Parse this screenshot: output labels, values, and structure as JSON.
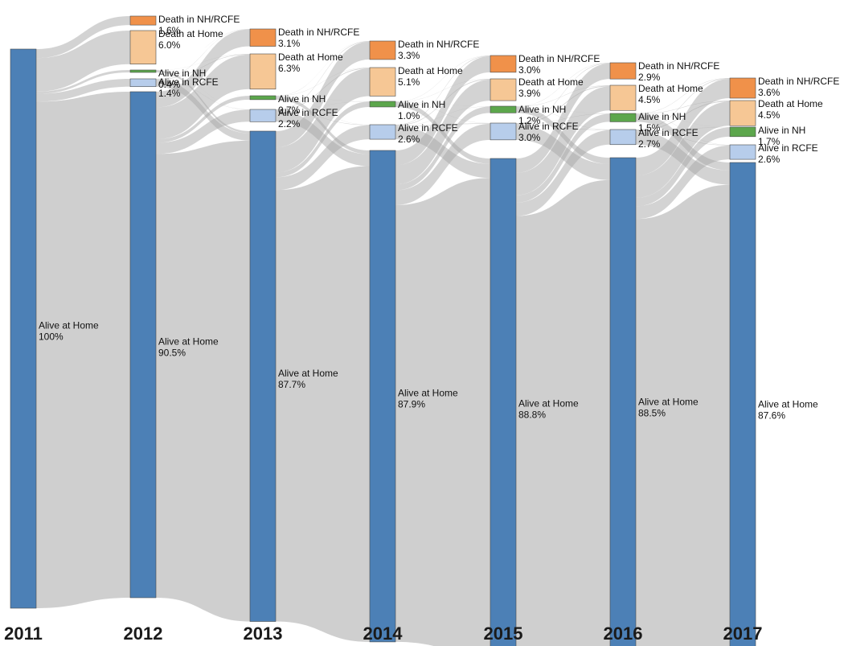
{
  "chart_data": {
    "type": "sankey",
    "title": "",
    "years": [
      "2011",
      "2012",
      "2013",
      "2014",
      "2015",
      "2016",
      "2017"
    ],
    "categories": [
      {
        "key": "death_nh",
        "label": "Death in NH/RCFE",
        "color": "#f0914a"
      },
      {
        "key": "death_home",
        "label": "Death at Home",
        "color": "#f6c795"
      },
      {
        "key": "alive_nh",
        "label": "Alive in NH",
        "color": "#5ca64c"
      },
      {
        "key": "alive_rcfe",
        "label": "Alive in RCFE",
        "color": "#b7cdeb"
      },
      {
        "key": "alive_home",
        "label": "Alive at Home",
        "color": "#4c80b6"
      }
    ],
    "columns": [
      {
        "year": "2011",
        "nodes": [
          {
            "key": "alive_home",
            "label": "Alive at Home",
            "percent": "100%",
            "value": 100
          }
        ]
      },
      {
        "year": "2012",
        "nodes": [
          {
            "key": "death_nh",
            "label": "Death in NH/RCFE",
            "percent": "1.6%",
            "value": 1.6
          },
          {
            "key": "death_home",
            "label": "Death at Home",
            "percent": "6.0%",
            "value": 6.0
          },
          {
            "key": "alive_nh",
            "label": "Alive in NH",
            "percent": "0.4%",
            "value": 0.4
          },
          {
            "key": "alive_rcfe",
            "label": "Alive in RCFE",
            "percent": "1.4%",
            "value": 1.4
          },
          {
            "key": "alive_home",
            "label": "Alive at Home",
            "percent": "90.5%",
            "value": 90.5
          }
        ]
      },
      {
        "year": "2013",
        "nodes": [
          {
            "key": "death_nh",
            "label": "Death in NH/RCFE",
            "percent": "3.1%",
            "value": 3.1
          },
          {
            "key": "death_home",
            "label": "Death at Home",
            "percent": "6.3%",
            "value": 6.3
          },
          {
            "key": "alive_nh",
            "label": "Alive in NH",
            "percent": "0.7%",
            "value": 0.7
          },
          {
            "key": "alive_rcfe",
            "label": "Alive in RCFE",
            "percent": "2.2%",
            "value": 2.2
          },
          {
            "key": "alive_home",
            "label": "Alive at Home",
            "percent": "87.7%",
            "value": 87.7
          }
        ]
      },
      {
        "year": "2014",
        "nodes": [
          {
            "key": "death_nh",
            "label": "Death in NH/RCFE",
            "percent": "3.3%",
            "value": 3.3
          },
          {
            "key": "death_home",
            "label": "Death at Home",
            "percent": "5.1%",
            "value": 5.1
          },
          {
            "key": "alive_nh",
            "label": "Alive in NH",
            "percent": "1.0%",
            "value": 1.0
          },
          {
            "key": "alive_rcfe",
            "label": "Alive in RCFE",
            "percent": "2.6%",
            "value": 2.6
          },
          {
            "key": "alive_home",
            "label": "Alive at Home",
            "percent": "87.9%",
            "value": 87.9
          }
        ]
      },
      {
        "year": "2015",
        "nodes": [
          {
            "key": "death_nh",
            "label": "Death in NH/RCFE",
            "percent": "3.0%",
            "value": 3.0
          },
          {
            "key": "death_home",
            "label": "Death at Home",
            "percent": "3.9%",
            "value": 3.9
          },
          {
            "key": "alive_nh",
            "label": "Alive in NH",
            "percent": "1.2%",
            "value": 1.2
          },
          {
            "key": "alive_rcfe",
            "label": "Alive in RCFE",
            "percent": "3.0%",
            "value": 3.0
          },
          {
            "key": "alive_home",
            "label": "Alive at Home",
            "percent": "88.8%",
            "value": 88.8
          }
        ]
      },
      {
        "year": "2016",
        "nodes": [
          {
            "key": "death_nh",
            "label": "Death in NH/RCFE",
            "percent": "2.9%",
            "value": 2.9
          },
          {
            "key": "death_home",
            "label": "Death at Home",
            "percent": "4.5%",
            "value": 4.5
          },
          {
            "key": "alive_nh",
            "label": "Alive in NH",
            "percent": "1.5%",
            "value": 1.5
          },
          {
            "key": "alive_rcfe",
            "label": "Alive in RCFE",
            "percent": "2.7%",
            "value": 2.7
          },
          {
            "key": "alive_home",
            "label": "Alive at Home",
            "percent": "88.5%",
            "value": 88.5
          }
        ]
      },
      {
        "year": "2017",
        "nodes": [
          {
            "key": "death_nh",
            "label": "Death in NH/RCFE",
            "percent": "3.6%",
            "value": 3.6
          },
          {
            "key": "death_home",
            "label": "Death at Home",
            "percent": "4.5%",
            "value": 4.5
          },
          {
            "key": "alive_nh",
            "label": "Alive in NH",
            "percent": "1.7%",
            "value": 1.7
          },
          {
            "key": "alive_rcfe",
            "label": "Alive in RCFE",
            "percent": "2.6%",
            "value": 2.6
          },
          {
            "key": "alive_home",
            "label": "Alive at Home",
            "percent": "87.6%",
            "value": 87.6
          }
        ]
      }
    ],
    "link_color": "#a8a8a8"
  }
}
